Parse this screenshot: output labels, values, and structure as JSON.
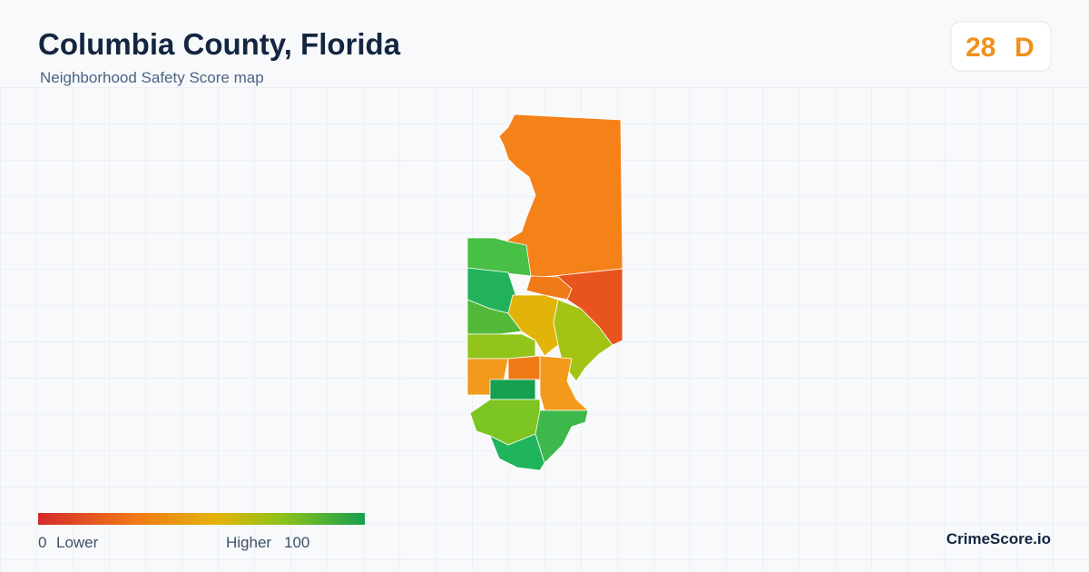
{
  "header": {
    "title": "Columbia County, Florida",
    "subtitle": "Neighborhood Safety Score map"
  },
  "score": {
    "value": "28",
    "grade": "D"
  },
  "legend": {
    "min": "0",
    "min_label": "Lower",
    "max_label": "Higher",
    "max": "100"
  },
  "brand": "CrimeScore.io"
}
